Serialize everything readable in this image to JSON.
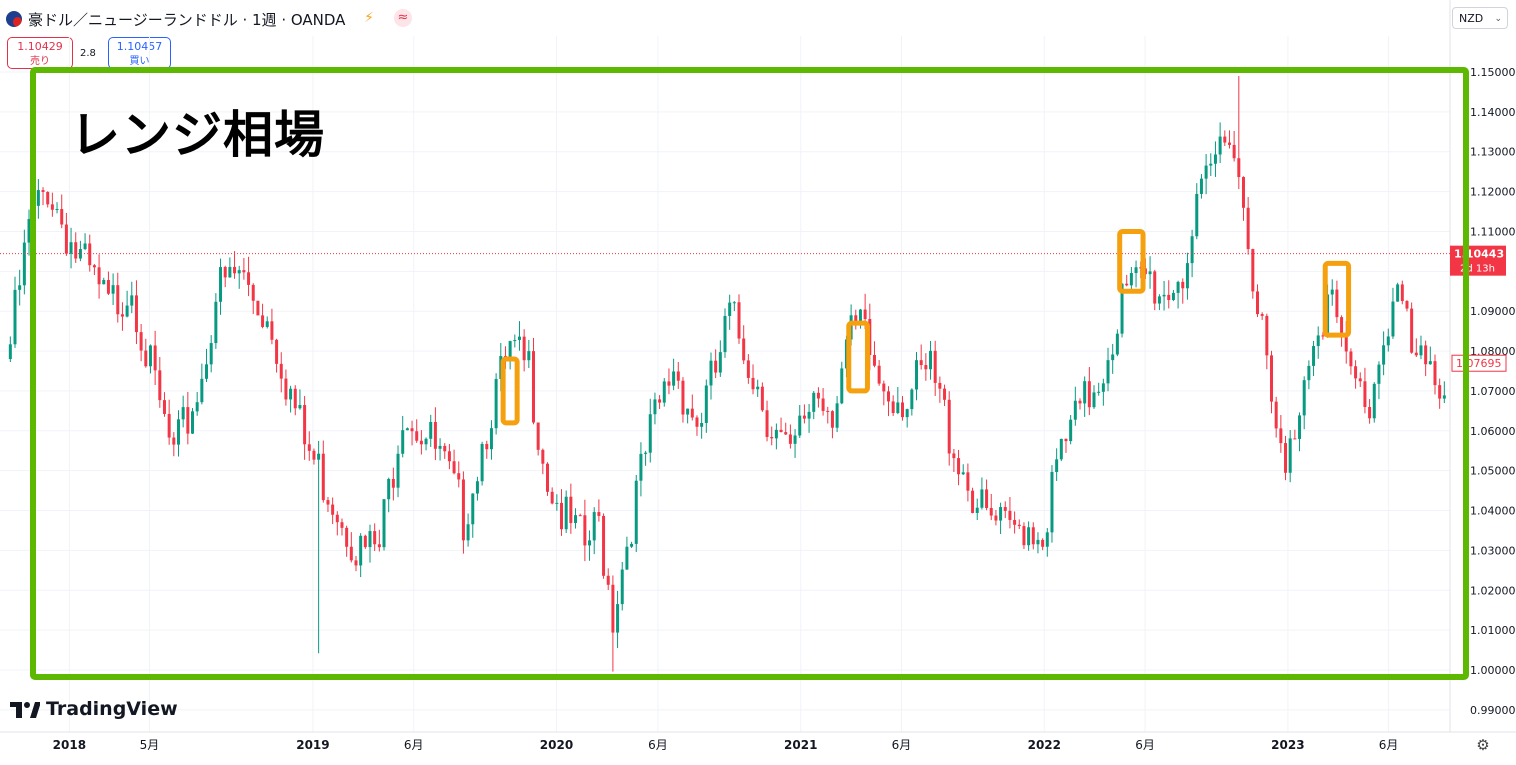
{
  "header": {
    "symbol_title": "豪ドル／ニュージーランドドル · 1週 · OANDA",
    "currency": "NZD",
    "sell_price": "1.10429",
    "sell_label": "売り",
    "spread": "2.8",
    "buy_price": "1.10457",
    "buy_label": "買い",
    "icons": [
      "flag-icon",
      "lightning-icon",
      "wave-icon",
      "chevron-down-icon",
      "settings-icon"
    ]
  },
  "annotation": {
    "label": "レンジ相場",
    "range_box_color": "#5cb800",
    "highlight_color": "#f5a00f"
  },
  "logo": {
    "text": "TradingView"
  },
  "price_tags": {
    "current_price": "1.10443",
    "countdown": "2d 13h",
    "ma_value": "1.07695"
  },
  "colors": {
    "up": "#089981",
    "down": "#f23645",
    "grid": "#f0f3fa",
    "price_line": "#f23645",
    "ma_tag": "#f23645"
  },
  "chart_data": {
    "type": "candlestick",
    "title": "豪ドル／ニュージーランドドル · 1週 · OANDA",
    "x_tick_labels": [
      "2018",
      "5月",
      "2019",
      "6月",
      "2020",
      "6月",
      "2021",
      "6月",
      "2022",
      "6月",
      "2023",
      "6月"
    ],
    "y_tick_labels": [
      "1.15000",
      "1.14000",
      "1.13000",
      "1.12000",
      "1.11000",
      "1.09000",
      "1.08000",
      "1.07000",
      "1.06000",
      "1.05000",
      "1.04000",
      "1.03000",
      "1.02000",
      "1.01000",
      "1.00000",
      "0.99000"
    ],
    "ylim": [
      0.9875,
      1.1525
    ],
    "x_range": [
      "2017-10",
      "2023-08"
    ],
    "current_price": 1.10443,
    "anchors": [
      [
        "2017-10-01",
        1.078
      ],
      [
        "2017-11-05",
        1.114
      ],
      [
        "2017-12-03",
        1.125
      ],
      [
        "2018-01-14",
        1.108
      ],
      [
        "2018-03-04",
        1.094
      ],
      [
        "2018-04-08",
        1.101
      ],
      [
        "2018-05-06",
        1.078
      ],
      [
        "2018-06-10",
        1.056
      ],
      [
        "2018-07-22",
        1.077
      ],
      [
        "2018-08-12",
        1.098
      ],
      [
        "2018-09-16",
        1.103
      ],
      [
        "2018-11-04",
        1.09
      ],
      [
        "2018-12-23",
        1.06
      ],
      [
        "2019-02-10",
        1.045
      ],
      [
        "2019-03-17",
        1.033
      ],
      [
        "2019-04-14",
        1.034
      ],
      [
        "2019-05-19",
        1.07
      ],
      [
        "2019-06-16",
        1.064
      ],
      [
        "2019-07-14",
        1.056
      ],
      [
        "2019-08-18",
        1.042
      ],
      [
        "2019-09-29",
        1.07
      ],
      [
        "2019-10-27",
        1.082
      ],
      [
        "2019-11-24",
        1.079
      ],
      [
        "2019-12-22",
        1.052
      ],
      [
        "2020-01-19",
        1.04
      ],
      [
        "2020-02-16",
        1.034
      ],
      [
        "2020-03-08",
        1.04
      ],
      [
        "2020-03-29",
        1.018
      ],
      [
        "2020-04-26",
        1.042
      ],
      [
        "2020-05-24",
        1.062
      ],
      [
        "2020-06-28",
        1.08
      ],
      [
        "2020-08-02",
        1.065
      ],
      [
        "2020-08-30",
        1.078
      ],
      [
        "2020-09-20",
        1.092
      ],
      [
        "2020-10-18",
        1.082
      ],
      [
        "2020-11-22",
        1.065
      ],
      [
        "2020-12-20",
        1.055
      ],
      [
        "2021-01-24",
        1.074
      ],
      [
        "2021-02-21",
        1.07
      ],
      [
        "2021-03-14",
        1.084
      ],
      [
        "2021-04-04",
        1.089
      ],
      [
        "2021-05-02",
        1.076
      ],
      [
        "2021-06-13",
        1.072
      ],
      [
        "2021-07-18",
        1.078
      ],
      [
        "2021-08-22",
        1.06
      ],
      [
        "2021-10-03",
        1.042
      ],
      [
        "2021-11-14",
        1.037
      ],
      [
        "2021-12-05",
        1.041
      ],
      [
        "2022-01-02",
        1.038
      ],
      [
        "2022-01-30",
        1.058
      ],
      [
        "2022-03-06",
        1.07
      ],
      [
        "2022-04-03",
        1.08
      ],
      [
        "2022-05-01",
        1.096
      ],
      [
        "2022-06-05",
        1.102
      ],
      [
        "2022-07-03",
        1.098
      ],
      [
        "2022-07-31",
        1.104
      ],
      [
        "2022-08-21",
        1.116
      ],
      [
        "2022-09-11",
        1.128
      ],
      [
        "2022-10-09",
        1.142
      ],
      [
        "2022-10-30",
        1.12
      ],
      [
        "2022-11-20",
        1.098
      ],
      [
        "2022-12-11",
        1.068
      ],
      [
        "2023-01-01",
        1.051
      ],
      [
        "2023-01-15",
        1.065
      ],
      [
        "2023-02-12",
        1.09
      ],
      [
        "2023-03-12",
        1.097
      ],
      [
        "2023-03-26",
        1.082
      ],
      [
        "2023-04-16",
        1.075
      ],
      [
        "2023-05-07",
        1.07
      ],
      [
        "2023-05-28",
        1.088
      ],
      [
        "2023-06-18",
        1.1
      ],
      [
        "2023-07-09",
        1.082
      ],
      [
        "2023-07-30",
        1.077
      ]
    ],
    "spikes": [
      [
        "2019-01-06",
        1.0042,
        "low"
      ],
      [
        "2020-03-22",
        0.9996,
        "low"
      ],
      [
        "2022-10-16",
        1.149,
        "high"
      ]
    ],
    "highlight_boxes": [
      {
        "from": "2019-10-13",
        "to": "2019-11-03",
        "low": 1.062,
        "high": 1.078
      },
      {
        "from": "2021-03-14",
        "to": "2021-04-11",
        "low": 1.07,
        "high": 1.087
      },
      {
        "from": "2022-04-24",
        "to": "2022-05-29",
        "low": 1.095,
        "high": 1.11
      },
      {
        "from": "2023-02-26",
        "to": "2023-04-02",
        "low": 1.084,
        "high": 1.102
      }
    ],
    "range_box": {
      "from": "2017-11-26",
      "to": "2023-08-20",
      "low": 0.9975,
      "high": 1.1505
    }
  }
}
